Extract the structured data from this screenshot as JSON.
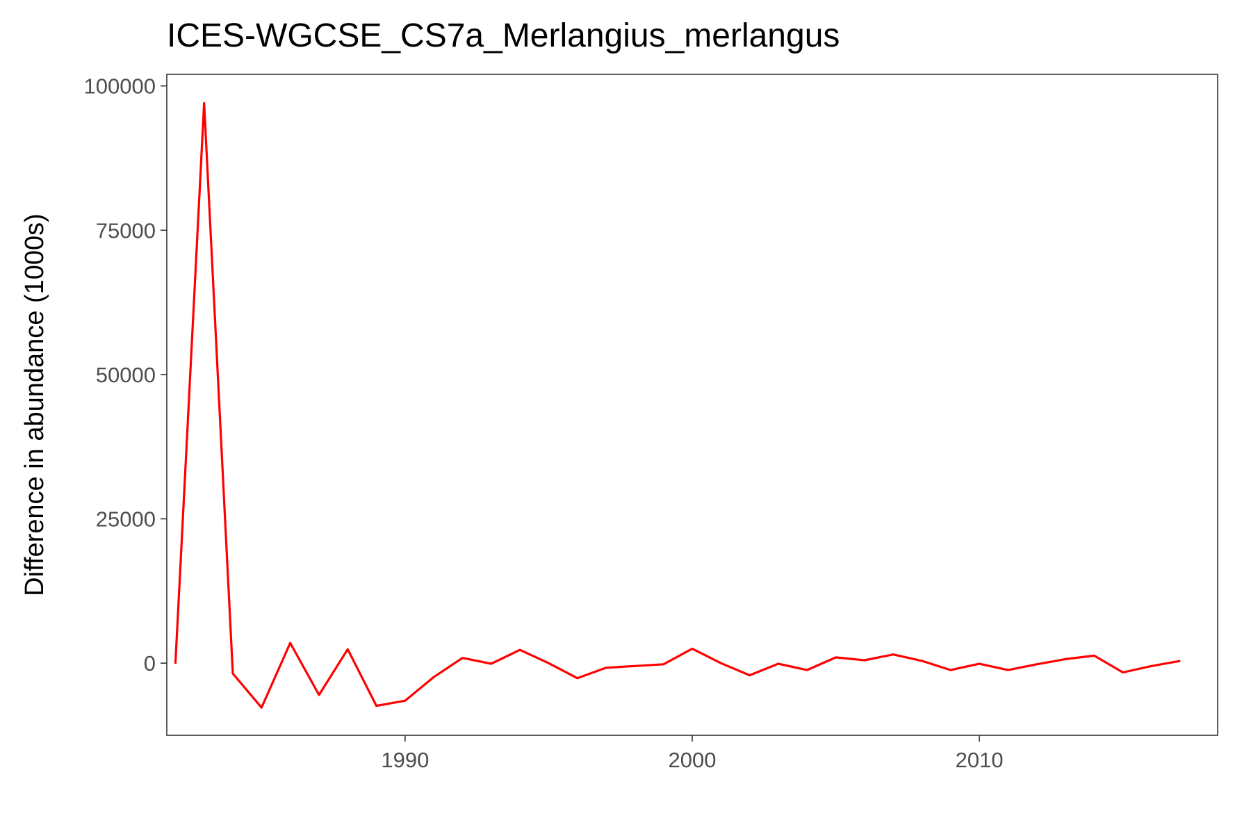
{
  "chart_data": {
    "type": "line",
    "title": "ICES-WGCSE_CS7a_Merlangius_merlangus",
    "xlabel": "",
    "ylabel": "Difference in abundance (1000s)",
    "xlim": [
      1981.7,
      2018.3
    ],
    "ylim": [
      -12500,
      102000
    ],
    "x_ticks": [
      1990,
      2000,
      2010
    ],
    "y_ticks": [
      0,
      25000,
      50000,
      75000,
      100000
    ],
    "grid": false,
    "series": [
      {
        "color": "#ff0000",
        "x": [
          1982,
          1983,
          1984,
          1985,
          1986,
          1987,
          1988,
          1989,
          1990,
          1991,
          1992,
          1993,
          1994,
          1995,
          1996,
          1997,
          1998,
          1999,
          2000,
          2001,
          2002,
          2003,
          2004,
          2005,
          2006,
          2007,
          2008,
          2009,
          2010,
          2011,
          2012,
          2013,
          2014,
          2015,
          2016,
          2017
        ],
        "y": [
          -100,
          97000,
          -1800,
          -7700,
          3500,
          -5500,
          2400,
          -7400,
          -6500,
          -2400,
          900,
          -100,
          2300,
          0,
          -2600,
          -800,
          -500,
          -200,
          2500,
          0,
          -2100,
          -100,
          -1200,
          1000,
          500,
          1500,
          400,
          -1200,
          -100,
          -1200,
          -200,
          700,
          1300,
          -1600,
          -500,
          400
        ]
      }
    ]
  }
}
